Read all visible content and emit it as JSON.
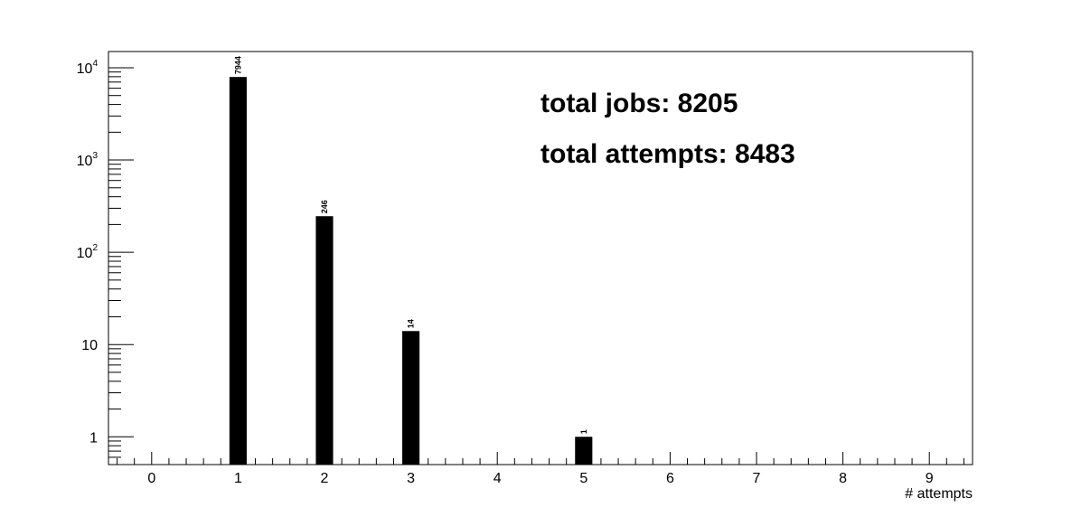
{
  "chart_data": {
    "type": "bar",
    "categories": [
      "0",
      "1",
      "2",
      "3",
      "4",
      "5",
      "6",
      "7",
      "8",
      "9"
    ],
    "values": [
      0,
      7944,
      246,
      14,
      0,
      1,
      0,
      0,
      0,
      0
    ],
    "bar_labels": [
      "",
      "7944",
      "246",
      "14",
      "",
      "1",
      "",
      "",
      "",
      ""
    ],
    "xlabel": "# attempts",
    "ylabel": "",
    "title": "",
    "xlim": [
      -0.5,
      9.5
    ],
    "ylim": [
      0.5,
      15000
    ],
    "yscale": "log",
    "y_ticks": [
      {
        "value": 1,
        "base": "1",
        "exp": ""
      },
      {
        "value": 10,
        "base": "10",
        "exp": ""
      },
      {
        "value": 100,
        "base": "10",
        "exp": "2"
      },
      {
        "value": 1000,
        "base": "10",
        "exp": "3"
      },
      {
        "value": 10000,
        "base": "10",
        "exp": "4"
      }
    ],
    "grid": false,
    "bar_color": "#000000",
    "annotations": [
      "total jobs: 8205",
      "total attempts: 8483"
    ]
  }
}
